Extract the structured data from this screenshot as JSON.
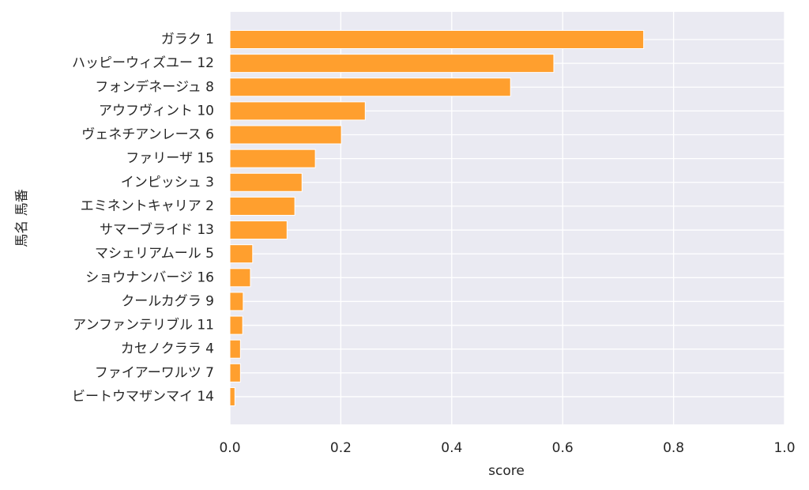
{
  "chart_data": {
    "type": "barh",
    "categories": [
      "ガラク 1",
      "ハッピーウィズユー 12",
      "フォンデネージュ 8",
      "アウフヴィント 10",
      "ヴェネチアンレース 6",
      "ファリーザ 15",
      "インピッシュ 3",
      "エミネントキャリア 2",
      "サマーブライド 13",
      "マシェリアムール 5",
      "ショウナンバージ 16",
      "クールカグラ 9",
      "アンファンテリブル 11",
      "カセノクララ 4",
      "ファイアーワルツ 7",
      "ビートウマザンマイ 14"
    ],
    "values": [
      0.746,
      0.584,
      0.506,
      0.244,
      0.201,
      0.154,
      0.13,
      0.117,
      0.103,
      0.041,
      0.037,
      0.024,
      0.023,
      0.019,
      0.019,
      0.009
    ],
    "color": "#ff9f2e",
    "xlabel": "score",
    "ylabel": "馬名 馬番",
    "xlim": [
      0,
      1
    ],
    "xticks": [
      {
        "value": 0,
        "label": "0.0"
      },
      0.2,
      0.4,
      0.6,
      0.8,
      {
        "value": 1,
        "label": "1.0"
      }
    ],
    "grid": true
  }
}
